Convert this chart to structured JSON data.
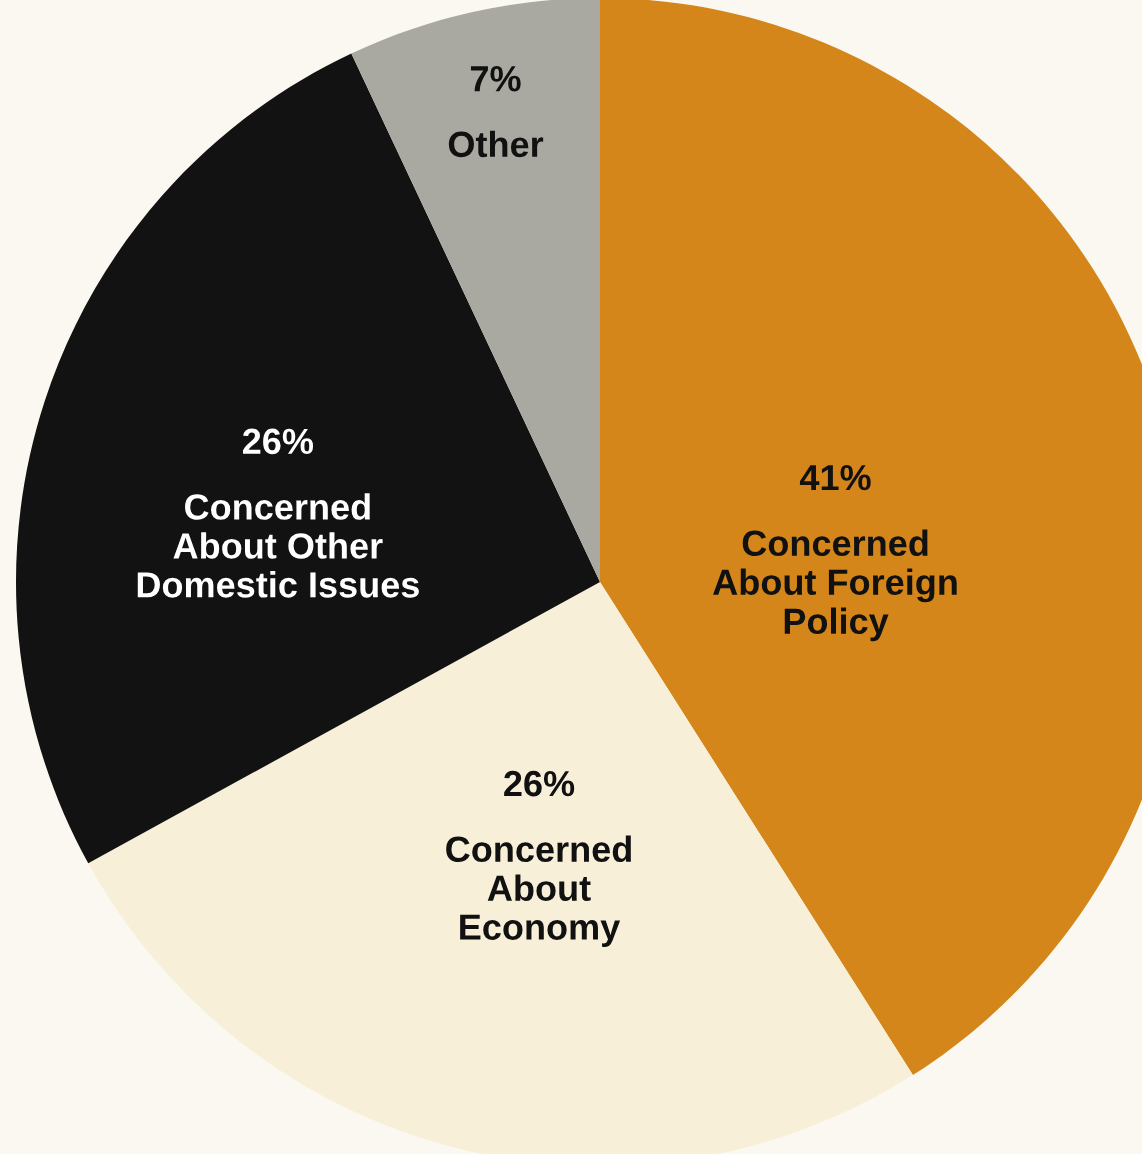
{
  "chart_data": {
    "type": "pie",
    "categories": [
      "Concerned\nAbout Foreign\nPolicy",
      "Concerned\nAbout\nEconomy",
      "Concerned\nAbout Other\nDomestic Issues",
      "Other"
    ],
    "values": [
      41,
      26,
      26,
      7
    ],
    "value_labels": [
      "41%",
      "26%",
      "26%",
      "7%"
    ],
    "colors": [
      "#d4861a",
      "#f8efd9",
      "#121212",
      "#a9a9a2"
    ]
  }
}
